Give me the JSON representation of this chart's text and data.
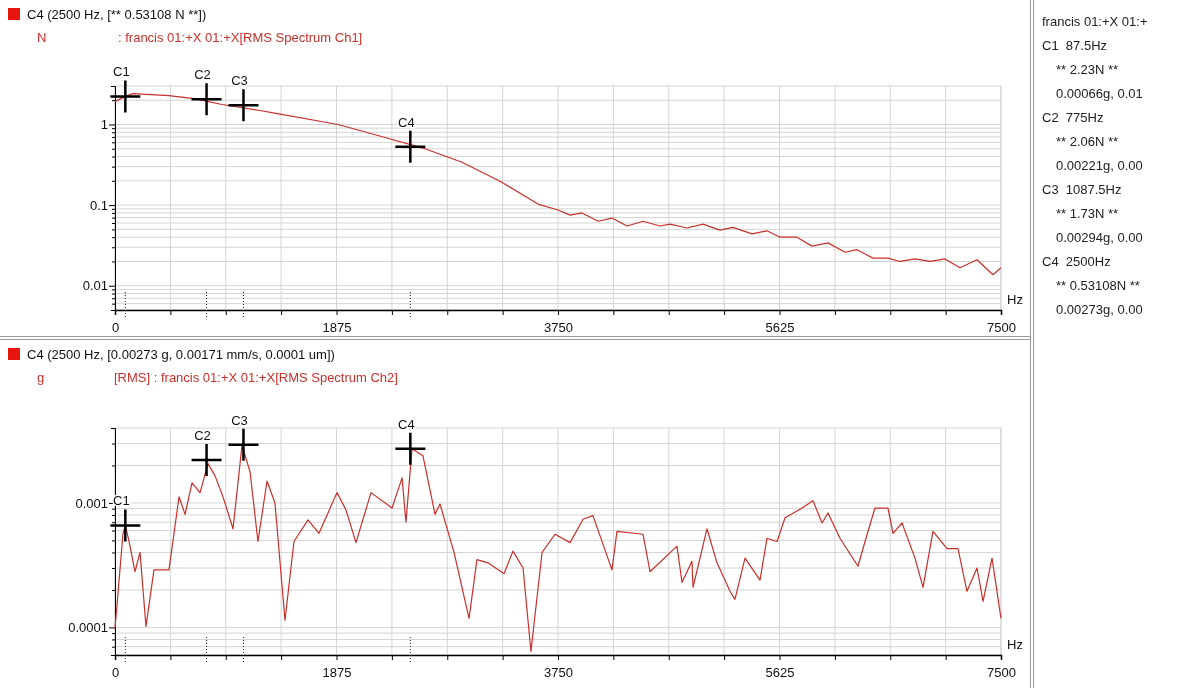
{
  "chart_data": [
    {
      "type": "line",
      "title": "C4 (2500 Hz, [** 0.53108 N **])",
      "subtitle": ": francis 01:+X 01:+X[RMS Spectrum Ch1]",
      "ylabel": "N",
      "xlabel": "Hz",
      "log": "y",
      "grid": true,
      "x": [
        0,
        87.5,
        152,
        457,
        669,
        906,
        1228,
        1363,
        1888,
        2286,
        2607,
        2937,
        3259,
        3581,
        3750,
        3852,
        3953,
        4089,
        4207,
        4334,
        4470,
        4613,
        4698,
        4842,
        4977,
        5121,
        5231,
        5392,
        5519,
        5629,
        5773,
        5900,
        6036,
        6180,
        6281,
        6416,
        6543,
        6645,
        6772,
        6899,
        7026,
        7153,
        7297,
        7432,
        7500
      ],
      "series": [
        {
          "color": "#c8302c",
          "values": [
            1.92,
            2.23,
            2.41,
            2.28,
            2.09,
            1.77,
            1.49,
            1.37,
            1.0,
            0.69,
            0.51,
            0.34,
            0.198,
            0.103,
            0.087,
            0.075,
            0.08,
            0.063,
            0.069,
            0.055,
            0.063,
            0.055,
            0.058,
            0.052,
            0.058,
            0.049,
            0.053,
            0.044,
            0.048,
            0.04,
            0.04,
            0.031,
            0.034,
            0.026,
            0.028,
            0.022,
            0.022,
            0.02,
            0.0215,
            0.02,
            0.0215,
            0.0167,
            0.021,
            0.0137,
            0.0167
          ]
        }
      ],
      "xlim": [
        0,
        7500
      ],
      "xticks": [
        0,
        {
          "value": 468.75,
          "label": null
        },
        {
          "value": 937.5,
          "label": null
        },
        {
          "value": 1406.25,
          "label": null
        },
        1875,
        {
          "value": 2343.75,
          "label": null
        },
        {
          "value": 2812.5,
          "label": null
        },
        {
          "value": 3281.25,
          "label": null
        },
        3750,
        {
          "value": 4218.75,
          "label": null
        },
        {
          "value": 4687.5,
          "label": null
        },
        {
          "value": 5156.25,
          "label": null
        },
        5625,
        {
          "value": 6093.75,
          "label": null
        },
        {
          "value": 6562.5,
          "label": null
        },
        {
          "value": 7031.25,
          "label": null
        },
        7500
      ],
      "ylim": [
        0.005,
        3
      ],
      "yticks": [
        {
          "value": 0.006,
          "label": null
        },
        {
          "value": 0.007,
          "label": null
        },
        {
          "value": 0.008,
          "label": null
        },
        {
          "value": 0.009,
          "label": null
        },
        0.01,
        {
          "value": 0.02,
          "label": null
        },
        {
          "value": 0.03,
          "label": null
        },
        {
          "value": 0.04,
          "label": null
        },
        {
          "value": 0.05,
          "label": null
        },
        {
          "value": 0.06,
          "label": null
        },
        {
          "value": 0.07,
          "label": null
        },
        {
          "value": 0.08,
          "label": null
        },
        {
          "value": 0.09,
          "label": null
        },
        0.1,
        {
          "value": 0.2,
          "label": null
        },
        {
          "value": 0.3,
          "label": null
        },
        {
          "value": 0.4,
          "label": null
        },
        {
          "value": 0.5,
          "label": null
        },
        {
          "value": 0.6,
          "label": null
        },
        {
          "value": 0.7,
          "label": null
        },
        {
          "value": 0.8,
          "label": null
        },
        {
          "value": 0.9,
          "label": null
        },
        1,
        {
          "value": 2,
          "label": null
        }
      ],
      "annotations": [
        {
          "text": "C1",
          "x": 87.5,
          "y": 2.23
        },
        {
          "text": "C2",
          "x": 775,
          "y": 2.06
        },
        {
          "text": "C3",
          "x": 1087.5,
          "y": 1.73
        },
        {
          "text": "C4",
          "x": 2500,
          "y": 0.53108
        }
      ]
    },
    {
      "type": "line",
      "title": "C4 (2500 Hz, [0.00273 g, 0.00171 mm/s, 0.0001 um])",
      "subtitle": "[RMS] : francis 01:+X 01:+X[RMS Spectrum Ch2]",
      "ylabel": "g",
      "xlabel": "Hz",
      "log": "y",
      "grid": true,
      "x": [
        0,
        68,
        87.5,
        119,
        169,
        212,
        262,
        330,
        457,
        542,
        593,
        652,
        720,
        787,
        847,
        914,
        999,
        1075,
        1143,
        1210,
        1287,
        1354,
        1439,
        1515,
        1634,
        1727,
        1879,
        1955,
        2040,
        2167,
        2345,
        2430,
        2463,
        2514,
        2607,
        2709,
        2751,
        2870,
        2997,
        3064,
        3157,
        3293,
        3369,
        3454,
        3521,
        3615,
        3725,
        3852,
        3962,
        4046,
        4207,
        4249,
        4470,
        4529,
        4757,
        4800,
        4884,
        4893,
        5011,
        5096,
        5206,
        5248,
        5333,
        5460,
        5519,
        5604,
        5672,
        5799,
        5909,
        5985,
        6036,
        6137,
        6289,
        6349,
        6433,
        6543,
        6586,
        6662,
        6772,
        6840,
        6924,
        7043,
        7136,
        7212,
        7297,
        7348,
        7424,
        7500
      ],
      "series": [
        {
          "color": "#c8302c",
          "values": [
            9.8e-05,
            0.00057,
            0.00066,
            0.00049,
            0.00028,
            0.0004,
            0.000102,
            0.00029,
            0.00029,
            0.00112,
            0.00081,
            0.00145,
            0.00121,
            0.00207,
            0.00165,
            0.00112,
            0.00062,
            0.0029,
            0.00178,
            0.00049,
            0.0015,
            0.001,
            0.000114,
            0.00049,
            0.00073,
            0.00057,
            0.00121,
            0.00088,
            0.00048,
            0.00121,
            0.00091,
            0.00159,
            0.0007,
            0.00272,
            0.00239,
            0.00081,
            0.00098,
            0.0004,
            0.000118,
            0.00035,
            0.00033,
            0.00027,
            0.00041,
            0.0003,
            6.4e-05,
            0.0004,
            0.00056,
            0.00048,
            0.00074,
            0.00079,
            0.00029,
            0.00059,
            0.00056,
            0.00028,
            0.00045,
            0.00023,
            0.00034,
            0.00021,
            0.00062,
            0.00033,
            0.000195,
            0.000168,
            0.00036,
            0.00024,
            0.00052,
            0.00049,
            0.00076,
            0.00089,
            0.00104,
            0.00069,
            0.00083,
            0.00052,
            0.00031,
            0.00049,
            0.00091,
            0.00091,
            0.00057,
            0.00069,
            0.00036,
            0.00021,
            0.00059,
            0.00043,
            0.00043,
            0.000195,
            0.0003,
            0.000162,
            0.00036,
            0.000118
          ]
        }
      ],
      "xlim": [
        0,
        7500
      ],
      "xticks": [
        0,
        {
          "value": 468.75,
          "label": null
        },
        {
          "value": 937.5,
          "label": null
        },
        {
          "value": 1406.25,
          "label": null
        },
        1875,
        {
          "value": 2343.75,
          "label": null
        },
        {
          "value": 2812.5,
          "label": null
        },
        {
          "value": 3281.25,
          "label": null
        },
        3750,
        {
          "value": 4218.75,
          "label": null
        },
        {
          "value": 4687.5,
          "label": null
        },
        {
          "value": 5156.25,
          "label": null
        },
        5625,
        {
          "value": 6093.75,
          "label": null
        },
        {
          "value": 6562.5,
          "label": null
        },
        {
          "value": 7031.25,
          "label": null
        },
        7500
      ],
      "ylim": [
        6e-05,
        0.004
      ],
      "yticks": [
        {
          "value": 7e-05,
          "label": null
        },
        {
          "value": 8e-05,
          "label": null
        },
        {
          "value": 9e-05,
          "label": null
        },
        0.0001,
        {
          "value": 0.0002,
          "label": null
        },
        {
          "value": 0.0003,
          "label": null
        },
        {
          "value": 0.0004,
          "label": null
        },
        {
          "value": 0.0005,
          "label": null
        },
        {
          "value": 0.0006,
          "label": null
        },
        {
          "value": 0.0007,
          "label": null
        },
        {
          "value": 0.0008,
          "label": null
        },
        {
          "value": 0.0009,
          "label": null
        },
        0.001,
        {
          "value": 0.002,
          "label": null
        },
        {
          "value": 0.003,
          "label": null
        }
      ],
      "annotations": [
        {
          "text": "C1",
          "x": 87.5,
          "y": 0.00066
        },
        {
          "text": "C2",
          "x": 775,
          "y": 0.00221
        },
        {
          "text": "C3",
          "x": 1087.5,
          "y": 0.00294
        },
        {
          "text": "C4",
          "x": 2500,
          "y": 0.00273
        }
      ]
    },
    {
      "type": "other",
      "title": "francis 01:+X 01:+",
      "annotations": [
        "C1  87.5Hz",
        "** 2.23N **",
        "0.00066g, 0.01",
        "C2  775Hz",
        "** 2.06N **",
        "0.00221g, 0.00",
        "C3  1087.5Hz",
        "** 1.73N **",
        "0.00294g, 0.00",
        "C4  2500Hz",
        "** 0.53108N **",
        "0.00273g, 0.00"
      ]
    }
  ]
}
